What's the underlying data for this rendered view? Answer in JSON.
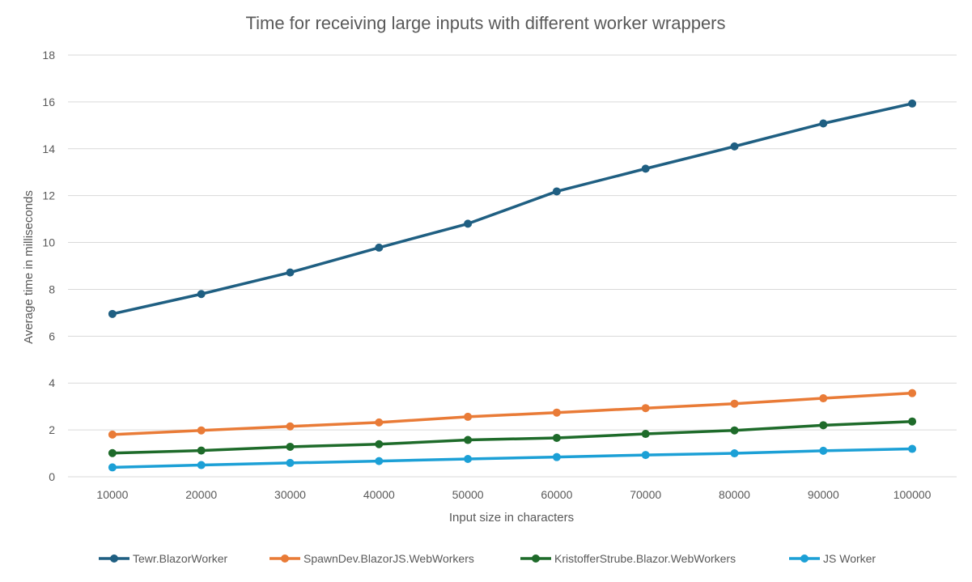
{
  "chart_data": {
    "type": "line",
    "title": "Time for receiving large inputs with different worker wrappers",
    "xlabel": "Input size in characters",
    "ylabel": "Average time in milliseconds",
    "x": [
      "10000",
      "20000",
      "30000",
      "40000",
      "50000",
      "60000",
      "70000",
      "80000",
      "90000",
      "100000"
    ],
    "ylim": [
      0,
      18
    ],
    "yticks": [
      0,
      2,
      4,
      6,
      8,
      10,
      12,
      14,
      16,
      18
    ],
    "grid": "horizontal",
    "legend_position": "bottom",
    "series": [
      {
        "name": "Tewr.BlazorWorker",
        "color": "#1f5f82",
        "values": [
          6.95,
          7.8,
          8.72,
          9.78,
          10.8,
          12.18,
          13.15,
          14.1,
          15.08,
          15.93
        ]
      },
      {
        "name": "SpawnDev.BlazorJS.WebWorkers",
        "color": "#e97b37",
        "values": [
          1.8,
          1.98,
          2.15,
          2.32,
          2.56,
          2.74,
          2.93,
          3.12,
          3.35,
          3.57
        ]
      },
      {
        "name": "KristofferStrube.Blazor.WebWorkers",
        "color": "#1e6b2a",
        "values": [
          1.01,
          1.12,
          1.28,
          1.39,
          1.57,
          1.66,
          1.83,
          1.98,
          2.2,
          2.36
        ]
      },
      {
        "name": "JS Worker",
        "color": "#1ca0d6",
        "values": [
          0.4,
          0.5,
          0.59,
          0.67,
          0.76,
          0.84,
          0.93,
          1.0,
          1.11,
          1.19
        ]
      }
    ]
  }
}
